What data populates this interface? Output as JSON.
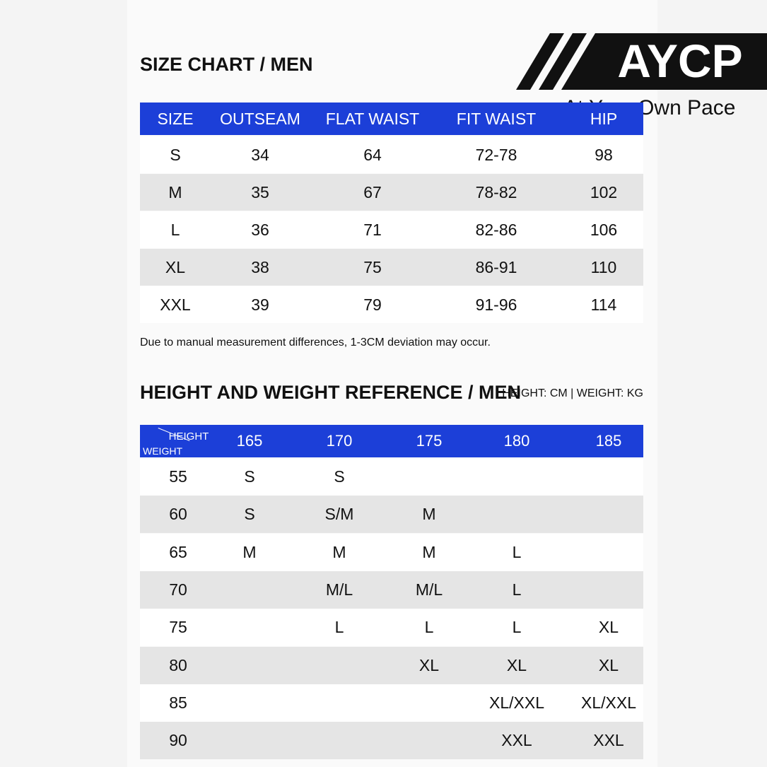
{
  "logo": {
    "brand": "AYCP",
    "tagline": "At Your Own Pace"
  },
  "size_chart": {
    "title": "SIZE CHART / MEN",
    "header": [
      "SIZE",
      "OUTSEAM",
      "FLAT WAIST",
      "FIT WAIST",
      "HIP"
    ],
    "rows": [
      [
        "S",
        "34",
        "64",
        "72-78",
        "98"
      ],
      [
        "M",
        "35",
        "67",
        "78-82",
        "102"
      ],
      [
        "L",
        "36",
        "71",
        "82-86",
        "106"
      ],
      [
        "XL",
        "38",
        "75",
        "86-91",
        "110"
      ],
      [
        "XXL",
        "39",
        "79",
        "91-96",
        "114"
      ]
    ],
    "note": "Due to manual measurement differences, 1-3CM deviation may occur."
  },
  "reference": {
    "title": "HEIGHT AND WEIGHT REFERENCE / MEN",
    "units": "HEIGHT: CM | WEIGHT: KG",
    "corner_height": "HEIGHT",
    "corner_weight": "WEIGHT",
    "heights": [
      "165",
      "170",
      "175",
      "180",
      "185"
    ],
    "rows": [
      [
        "55",
        "S",
        "S",
        null,
        null,
        null
      ],
      [
        "60",
        "S",
        "S/M",
        "M",
        null,
        null
      ],
      [
        "65",
        "M",
        "M",
        "M",
        "L",
        null
      ],
      [
        "70",
        null,
        "M/L",
        "M/L",
        "L",
        null
      ],
      [
        "75",
        null,
        "L",
        "L",
        "L",
        "XL"
      ],
      [
        "80",
        null,
        null,
        "XL",
        "XL",
        "XL"
      ],
      [
        "85",
        null,
        null,
        null,
        "XL/XXL",
        "XL/XXL"
      ],
      [
        "90",
        null,
        null,
        null,
        "XXL",
        "XXL"
      ]
    ]
  }
}
